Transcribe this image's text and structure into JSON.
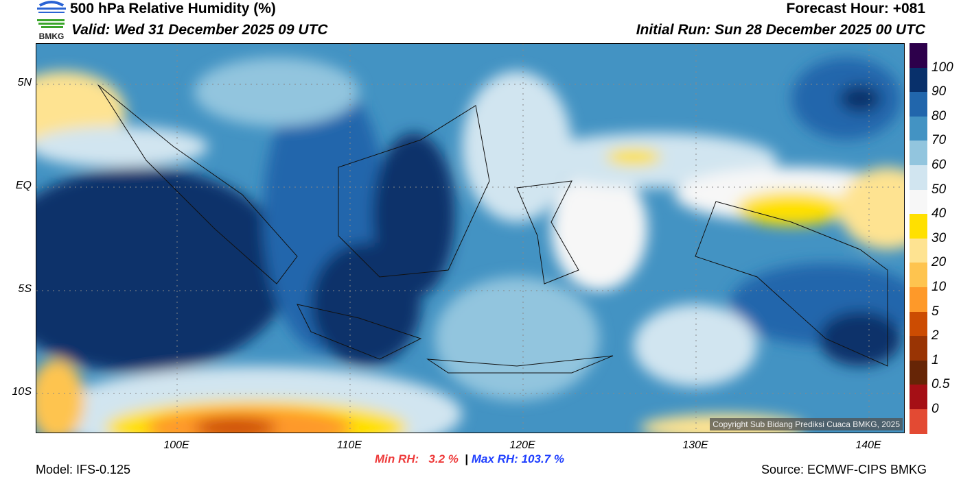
{
  "header": {
    "title": "500 hPa Relative Humidity (%)",
    "valid": "Valid: Wed 31 December 2025 09 UTC",
    "forecast_hour": "Forecast Hour: +081",
    "initial_run": "Initial Run: Sun 28 December 2025 00 UTC",
    "logo_text": "BMKG"
  },
  "map": {
    "lat_labels": [
      "5N",
      "EQ",
      "5S",
      "10S"
    ],
    "lon_labels": [
      "100E",
      "110E",
      "120E",
      "130E",
      "140E"
    ],
    "copyright": "Copyright Sub Bidang Prediksi Cuaca BMKG, 2025"
  },
  "colorbar": {
    "labels": [
      "100",
      "90",
      "80",
      "70",
      "60",
      "50",
      "40",
      "30",
      "20",
      "10",
      "5",
      "2",
      "1",
      "0.5",
      "0"
    ],
    "colors": [
      "#2d004b",
      "#08306b",
      "#2166ac",
      "#4393c3",
      "#92c5de",
      "#d1e5f0",
      "#f7f7f7",
      "#ffe000",
      "#fee391",
      "#fec44f",
      "#fe9929",
      "#cc4c02",
      "#993404",
      "#662506",
      "#a50f15",
      "#e34a33"
    ]
  },
  "footer": {
    "model": "Model: IFS-0.125",
    "min_label": "Min RH:",
    "min_value": "3.2 %",
    "separator": "|",
    "max_label": "Max RH:",
    "max_value": "103.7 %",
    "source": "Source: ECMWF-CIPS BMKG"
  },
  "colors": {
    "min": "#ee3b3b",
    "max": "#1f3fff"
  }
}
